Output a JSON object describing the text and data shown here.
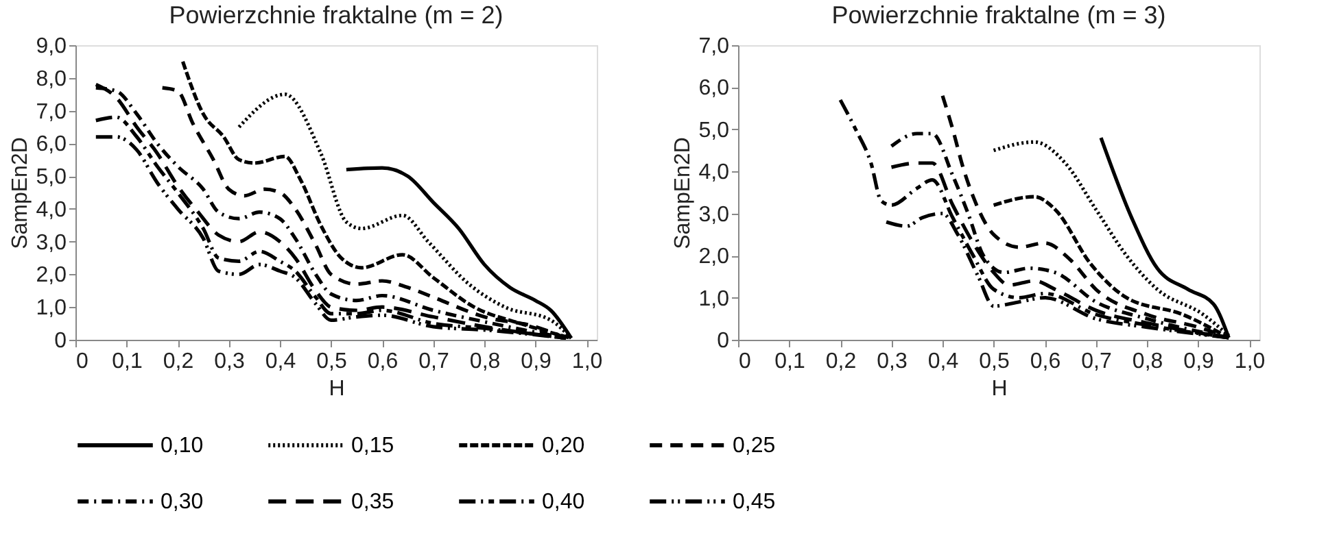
{
  "chart_data": [
    {
      "type": "line",
      "title": "Powierzchnie fraktalne (m = 2)",
      "xlabel": "H",
      "ylabel": "SampEn2D",
      "xlim": [
        0,
        1.02
      ],
      "xticks": [
        0,
        {
          "value": 0.1,
          "label": "0,1"
        },
        {
          "value": 0.2,
          "label": "0,2"
        },
        {
          "value": 0.3,
          "label": "0,3"
        },
        {
          "value": 0.4,
          "label": "0,4"
        },
        {
          "value": 0.5,
          "label": "0,5"
        },
        {
          "value": 0.6,
          "label": "0,6"
        },
        {
          "value": 0.7,
          "label": "0,7"
        },
        {
          "value": 0.8,
          "label": "0,8"
        },
        {
          "value": 0.9,
          "label": "0,9"
        },
        {
          "value": 1.0,
          "label": "1,0"
        }
      ],
      "ylim": [
        0,
        9
      ],
      "yticks": [
        0,
        {
          "value": 1,
          "label": "1,0"
        },
        {
          "value": 2,
          "label": "2,0"
        },
        {
          "value": 3,
          "label": "3,0"
        },
        {
          "value": 4,
          "label": "4,0"
        },
        {
          "value": 5,
          "label": "5,0"
        },
        {
          "value": 6,
          "label": "6,0"
        },
        {
          "value": 7,
          "label": "7,0"
        },
        {
          "value": 8,
          "label": "8,0"
        },
        {
          "value": 9,
          "label": "9,0"
        }
      ],
      "grid": false,
      "legend": "bottom",
      "series": [
        {
          "name": "0,10",
          "color": "#000000",
          "line_style": "solid",
          "x": [
            0.53,
            0.6,
            0.65,
            0.7,
            0.75,
            0.8,
            0.85,
            0.9,
            0.93,
            0.97
          ],
          "values": [
            5.2,
            5.25,
            5.0,
            4.2,
            3.4,
            2.3,
            1.6,
            1.2,
            0.9,
            0.05
          ]
        },
        {
          "name": "0,15",
          "color": "#000000",
          "line_style": "dotted",
          "x": [
            0.32,
            0.41,
            0.48,
            0.53,
            0.56,
            0.64,
            0.69,
            0.77,
            0.84,
            0.93,
            0.97
          ],
          "values": [
            6.5,
            7.5,
            5.7,
            3.6,
            3.4,
            3.8,
            3.0,
            1.7,
            1.0,
            0.6,
            0.05
          ]
        },
        {
          "name": "0,20",
          "color": "#000000",
          "line_style": "dashed",
          "x": [
            0.21,
            0.25,
            0.29,
            0.32,
            0.35,
            0.41,
            0.44,
            0.48,
            0.52,
            0.56,
            0.64,
            0.7,
            0.78,
            0.87,
            0.97
          ],
          "values": [
            8.5,
            6.9,
            6.2,
            5.5,
            5.4,
            5.6,
            4.9,
            3.5,
            2.5,
            2.2,
            2.6,
            1.9,
            1.0,
            0.5,
            0.05
          ]
        },
        {
          "name": "0,25",
          "color": "#000000",
          "line_style": "dashed",
          "x": [
            0.17,
            0.2,
            0.23,
            0.27,
            0.3,
            0.33,
            0.37,
            0.4,
            0.43,
            0.47,
            0.5,
            0.55,
            0.6,
            0.65,
            0.7,
            0.8,
            0.9,
            0.96
          ],
          "values": [
            7.7,
            7.6,
            6.6,
            5.5,
            4.6,
            4.4,
            4.6,
            4.5,
            4.0,
            2.9,
            2.0,
            1.7,
            1.8,
            1.6,
            1.3,
            0.7,
            0.4,
            0.05
          ]
        },
        {
          "name": "0,30",
          "color": "#000000",
          "line_style": "dashed",
          "x": [
            0.04,
            0.08,
            0.12,
            0.16,
            0.2,
            0.25,
            0.28,
            0.32,
            0.36,
            0.4,
            0.43,
            0.47,
            0.5,
            0.55,
            0.6,
            0.7,
            0.8,
            0.96
          ],
          "values": [
            7.7,
            7.6,
            6.9,
            6.0,
            5.3,
            4.6,
            3.9,
            3.7,
            3.9,
            3.7,
            3.1,
            2.0,
            1.4,
            1.2,
            1.35,
            0.9,
            0.55,
            0.05
          ]
        },
        {
          "name": "0,35",
          "color": "#000000",
          "line_style": "dashed",
          "x": [
            0.04,
            0.08,
            0.12,
            0.16,
            0.2,
            0.24,
            0.28,
            0.32,
            0.36,
            0.4,
            0.43,
            0.47,
            0.5,
            0.55,
            0.6,
            0.7,
            0.8,
            0.96
          ],
          "values": [
            7.8,
            7.4,
            6.5,
            5.7,
            4.7,
            3.9,
            3.2,
            3.0,
            3.3,
            3.0,
            2.5,
            1.5,
            1.0,
            0.9,
            1.0,
            0.7,
            0.4,
            0.05
          ]
        },
        {
          "name": "0,40",
          "color": "#000000",
          "line_style": "dashed",
          "x": [
            0.04,
            0.08,
            0.12,
            0.16,
            0.2,
            0.25,
            0.28,
            0.32,
            0.36,
            0.4,
            0.43,
            0.47,
            0.5,
            0.55,
            0.6,
            0.7,
            0.8,
            0.96
          ],
          "values": [
            6.7,
            6.8,
            6.2,
            5.3,
            4.5,
            3.4,
            2.5,
            2.4,
            2.7,
            2.4,
            2.1,
            1.3,
            0.8,
            0.8,
            0.9,
            0.5,
            0.35,
            0.05
          ]
        },
        {
          "name": "0,45",
          "color": "#000000",
          "line_style": "dashed",
          "x": [
            0.04,
            0.08,
            0.12,
            0.16,
            0.2,
            0.25,
            0.28,
            0.32,
            0.36,
            0.4,
            0.43,
            0.47,
            0.5,
            0.55,
            0.6,
            0.7,
            0.8,
            0.96
          ],
          "values": [
            6.2,
            6.2,
            5.8,
            4.8,
            4.0,
            3.1,
            2.1,
            2.0,
            2.3,
            2.1,
            1.9,
            1.1,
            0.6,
            0.7,
            0.75,
            0.4,
            0.3,
            0.05
          ]
        }
      ]
    },
    {
      "type": "line",
      "title": "Powierzchnie fraktalne (m = 3)",
      "xlabel": "H",
      "ylabel": "SampEn2D",
      "xlim": [
        0,
        1.02
      ],
      "xticks": [
        0,
        {
          "value": 0.1,
          "label": "0,1"
        },
        {
          "value": 0.2,
          "label": "0,2"
        },
        {
          "value": 0.3,
          "label": "0,3"
        },
        {
          "value": 0.4,
          "label": "0,4"
        },
        {
          "value": 0.5,
          "label": "0,5"
        },
        {
          "value": 0.6,
          "label": "0,6"
        },
        {
          "value": 0.7,
          "label": "0,7"
        },
        {
          "value": 0.8,
          "label": "0,8"
        },
        {
          "value": 0.9,
          "label": "0,9"
        },
        {
          "value": 1.0,
          "label": "1,0"
        }
      ],
      "ylim": [
        0,
        7
      ],
      "yticks": [
        0,
        {
          "value": 1,
          "label": "1,0"
        },
        {
          "value": 2,
          "label": "2,0"
        },
        {
          "value": 3,
          "label": "3,0"
        },
        {
          "value": 4,
          "label": "4,0"
        },
        {
          "value": 5,
          "label": "5,0"
        },
        {
          "value": 6,
          "label": "6,0"
        },
        {
          "value": 7,
          "label": "7,0"
        }
      ],
      "grid": false,
      "legend": "bottom",
      "series": [
        {
          "name": "0,10",
          "color": "#000000",
          "line_style": "solid",
          "x": [
            0.71,
            0.77,
            0.82,
            0.88,
            0.93,
            0.96
          ],
          "values": [
            4.8,
            2.9,
            1.7,
            1.2,
            0.85,
            0.05
          ]
        },
        {
          "name": "0,15",
          "color": "#000000",
          "line_style": "dotted",
          "x": [
            0.5,
            0.58,
            0.64,
            0.7,
            0.76,
            0.82,
            0.91,
            0.96
          ],
          "values": [
            4.5,
            4.7,
            4.2,
            3.1,
            2.0,
            1.2,
            0.6,
            0.1
          ]
        },
        {
          "name": "0,20",
          "color": "#000000",
          "line_style": "dashed",
          "x": [
            0.5,
            0.58,
            0.62,
            0.69,
            0.76,
            0.87,
            0.96
          ],
          "values": [
            3.2,
            3.4,
            3.1,
            1.8,
            1.0,
            0.6,
            0.05
          ]
        },
        {
          "name": "0,25",
          "color": "#000000",
          "line_style": "dashed",
          "x": [
            0.4,
            0.42,
            0.44,
            0.46,
            0.5,
            0.55,
            0.6,
            0.65,
            0.7,
            0.8,
            0.9,
            0.96
          ],
          "values": [
            5.8,
            5.0,
            4.1,
            3.4,
            2.5,
            2.2,
            2.3,
            1.9,
            1.2,
            0.6,
            0.3,
            0.05
          ]
        },
        {
          "name": "0,30",
          "color": "#000000",
          "line_style": "dashed",
          "x": [
            0.3,
            0.35,
            0.38,
            0.42,
            0.45,
            0.48,
            0.52,
            0.57,
            0.62,
            0.7,
            0.8,
            0.96
          ],
          "values": [
            4.6,
            4.9,
            4.9,
            3.9,
            3.0,
            2.0,
            1.6,
            1.7,
            1.6,
            0.9,
            0.5,
            0.05
          ]
        },
        {
          "name": "0,35",
          "color": "#000000",
          "line_style": "dashed",
          "x": [
            0.3,
            0.35,
            0.38,
            0.42,
            0.46,
            0.5,
            0.53,
            0.58,
            0.62,
            0.7,
            0.8,
            0.96
          ],
          "values": [
            4.1,
            4.2,
            4.2,
            3.2,
            2.3,
            1.6,
            1.3,
            1.4,
            1.2,
            0.7,
            0.4,
            0.05
          ]
        },
        {
          "name": "0,40",
          "color": "#000000",
          "line_style": "dashed",
          "x": [
            0.2,
            0.23,
            0.26,
            0.28,
            0.3,
            0.35,
            0.38,
            0.42,
            0.46,
            0.5,
            0.55,
            0.6,
            0.7,
            0.8,
            0.96
          ],
          "values": [
            5.7,
            5.0,
            4.2,
            3.3,
            3.2,
            3.6,
            3.8,
            2.9,
            2.0,
            1.2,
            1.0,
            1.1,
            0.6,
            0.35,
            0.05
          ]
        },
        {
          "name": "0,45",
          "color": "#000000",
          "line_style": "dashed",
          "x": [
            0.29,
            0.33,
            0.36,
            0.4,
            0.43,
            0.47,
            0.5,
            0.55,
            0.6,
            0.7,
            0.8,
            0.96
          ],
          "values": [
            2.8,
            2.7,
            2.9,
            3.0,
            2.5,
            1.5,
            0.8,
            0.9,
            1.0,
            0.5,
            0.3,
            0.05
          ]
        }
      ]
    }
  ]
}
